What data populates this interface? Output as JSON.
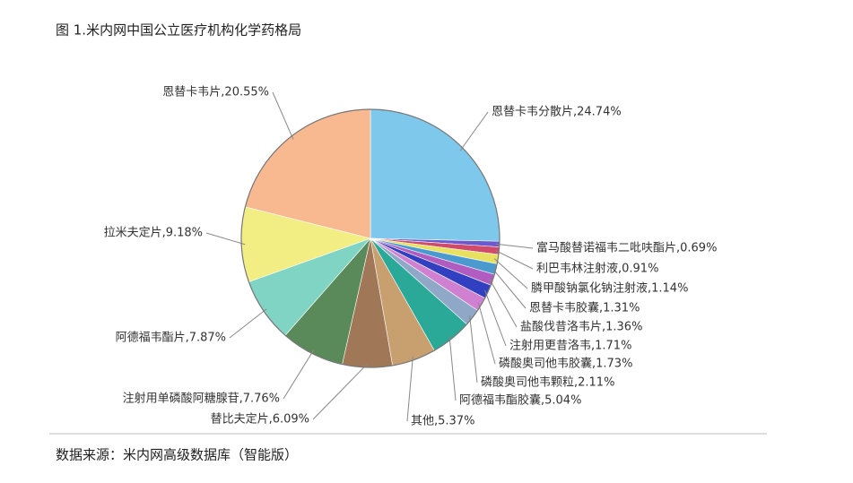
{
  "chart_data": {
    "type": "pie",
    "title": "图 1.米内网中国公立医疗机构化学药格局",
    "source": "数据来源：米内网高级数据库（智能版）",
    "values": [
      24.74,
      0.69,
      0.91,
      1.14,
      1.31,
      1.36,
      1.71,
      1.73,
      2.11,
      5.04,
      5.37,
      6.09,
      7.76,
      7.87,
      9.18,
      20.55
    ],
    "value_labels": [
      "恩替卡韦分散片,24.74%",
      "富马酸替诺福韦二吡呋酯片,0.69%",
      "利巴韦林注射液,0.91%",
      "膦甲酸钠氯化钠注射液,1.14%",
      "恩替卡韦胶囊,1.31%",
      "盐酸伐昔洛韦片,1.36%",
      "注射用更昔洛韦,1.71%",
      "磷酸奥司他韦胶囊,1.73%",
      "磷酸奥司他韦颗粒,2.11%",
      "阿德福韦酯胶囊,5.04%",
      "其他,5.37%",
      "替比夫定片,6.09%",
      "注射用单磷酸阿糖腺苷,7.76%",
      "阿德福韦酯片,7.87%",
      "拉米夫定片,9.18%",
      "恩替卡韦片,20.55%"
    ],
    "colors": [
      "#7ec8ec",
      "#6a5acd",
      "#d04a6a",
      "#e8e060",
      "#4a9ad0",
      "#b05cc0",
      "#3040c0",
      "#d080d0",
      "#90a8c8",
      "#2aa898",
      "#c8a070",
      "#a07858",
      "#5a8a5a",
      "#80d4c4",
      "#f2ee84",
      "#f8b890"
    ]
  }
}
